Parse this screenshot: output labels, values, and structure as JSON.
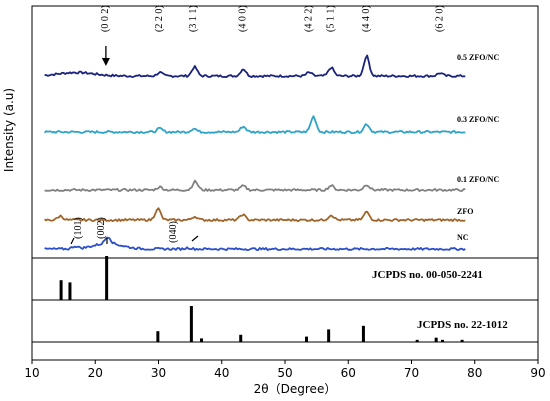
{
  "chart_data": {
    "type": "line",
    "xlabel": "2θ（Degree）",
    "ylabel": "Intensity (a.u)",
    "xlim": [
      10,
      90
    ],
    "xticks": [
      10,
      20,
      30,
      40,
      50,
      60,
      70,
      80,
      90
    ],
    "series": [
      {
        "name": "0.5 ZFO/NC",
        "color": "#1a237e",
        "peaks": [
          [
            30.2,
            0.35
          ],
          [
            35.7,
            0.9
          ],
          [
            43.4,
            0.7
          ],
          [
            53.8,
            0.35
          ],
          [
            57.3,
            0.85
          ],
          [
            62.9,
            2.0
          ],
          [
            74.5,
            0.3
          ]
        ]
      },
      {
        "name": "0.3 ZFO/NC",
        "color": "#2fa3c7",
        "peaks": [
          [
            30.2,
            0.35
          ],
          [
            35.6,
            0.35
          ],
          [
            43.4,
            0.55
          ],
          [
            54.5,
            1.55
          ],
          [
            62.9,
            0.8
          ]
        ]
      },
      {
        "name": "0.1 ZFO/NC",
        "color": "#808080",
        "peaks": [
          [
            30.2,
            0.3
          ],
          [
            35.8,
            0.85
          ],
          [
            43.4,
            0.4
          ],
          [
            57.3,
            0.45
          ],
          [
            62.9,
            0.55
          ]
        ]
      },
      {
        "name": "ZFO",
        "color": "#a0642a",
        "peaks": [
          [
            14.5,
            0.4
          ],
          [
            29.9,
            1.15
          ],
          [
            35.7,
            0.35
          ],
          [
            43.3,
            0.55
          ],
          [
            57.3,
            0.5
          ],
          [
            62.9,
            0.8
          ]
        ]
      },
      {
        "name": "NC",
        "color": "#2a4fc9",
        "peaks": [
          [
            16.8,
            0.25
          ],
          [
            22.0,
            0.7
          ],
          [
            34.7,
            0.12
          ]
        ]
      }
    ],
    "hkl_labels": [
      {
        "text": "(0 0 2)",
        "x": 22
      },
      {
        "text": "(2 2 0)",
        "x": 30.2
      },
      {
        "text": "(3 1 1)",
        "x": 35.6
      },
      {
        "text": "(4 0 0)",
        "x": 43.4
      },
      {
        "text": "(4 2 2)",
        "x": 53.8
      },
      {
        "text": "(5 1 1)",
        "x": 57.3
      },
      {
        "text": "(4 4 0)",
        "x": 62.9
      },
      {
        "text": "(6 2 0)",
        "x": 74.5
      }
    ],
    "nc_labels": [
      {
        "text": "(101)",
        "x": 17.5
      },
      {
        "text": "(002)",
        "x": 22.5
      },
      {
        "text": "(040)",
        "x": 34.5
      }
    ],
    "reference_patterns": [
      {
        "label": "JCPDS no. 00-050-2241",
        "lines": [
          [
            14.6,
            0.45
          ],
          [
            16.0,
            0.4
          ],
          [
            21.8,
            1.0
          ]
        ]
      },
      {
        "label": "JCPDS no. 22-1012",
        "lines": [
          [
            29.9,
            0.3
          ],
          [
            35.2,
            1.0
          ],
          [
            36.8,
            0.1
          ],
          [
            43.0,
            0.2
          ],
          [
            53.4,
            0.15
          ],
          [
            56.9,
            0.35
          ],
          [
            62.4,
            0.45
          ],
          [
            70.9,
            0.06
          ],
          [
            73.9,
            0.12
          ],
          [
            74.9,
            0.06
          ],
          [
            78.0,
            0.06
          ]
        ]
      }
    ]
  }
}
